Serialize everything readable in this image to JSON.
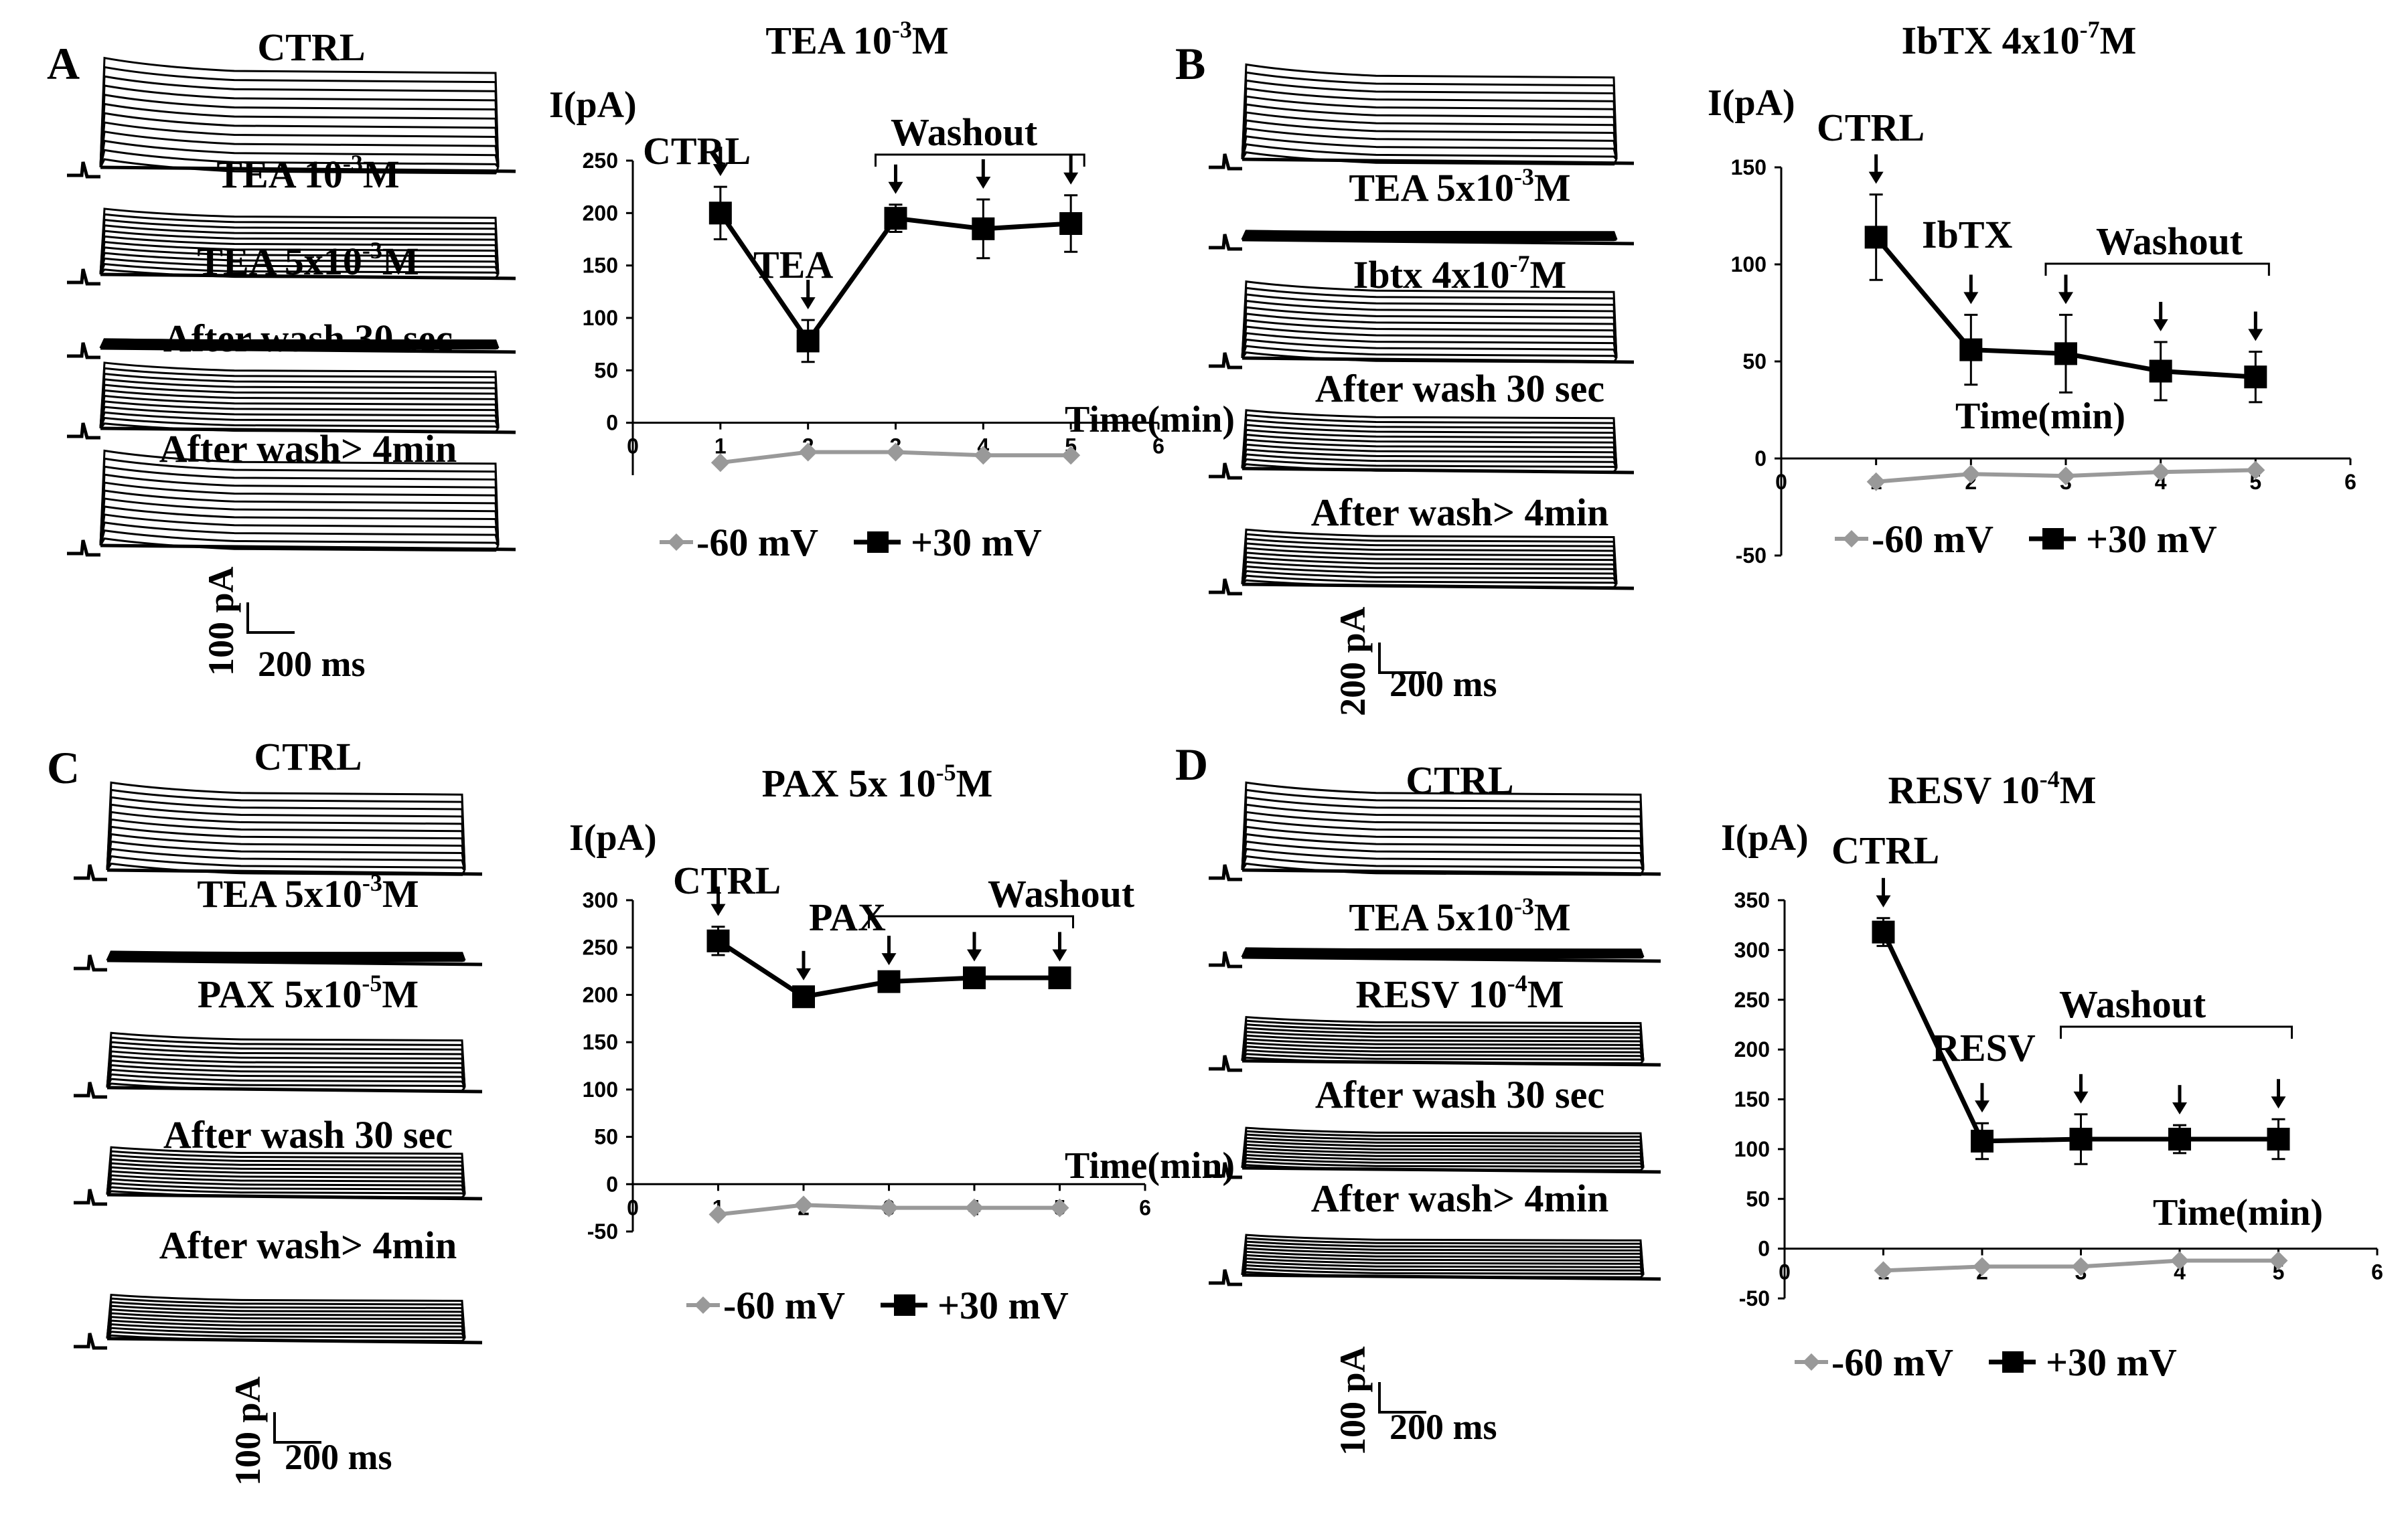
{
  "panels": [
    {
      "letter": "A",
      "trace_labels": [
        "CTRL",
        "TEA 10-3M",
        "TEA 5x10-3M",
        "After wash 30 sec",
        "After wash> 4min"
      ],
      "scale_y": "100 pA",
      "scale_x": "200 ms"
    },
    {
      "letter": "B",
      "trace_labels": [
        "TEA 5x10-3M",
        "Ibtx 4x10-7M",
        "After wash 30 sec",
        "After wash> 4min"
      ],
      "scale_y": "200 pA",
      "scale_x": "200 ms"
    },
    {
      "letter": "C",
      "trace_labels": [
        "CTRL",
        "TEA 5x10-3M",
        "PAX 5x10-5M",
        "After wash 30 sec",
        "After wash> 4min"
      ],
      "scale_y": "100 pA",
      "scale_x": "200 ms"
    },
    {
      "letter": "D",
      "trace_labels": [
        "CTRL",
        "TEA 5x10-3M",
        "RESV 10-4M",
        "After wash 30 sec",
        "After wash> 4min"
      ],
      "scale_y": "100 pA",
      "scale_x": "200 ms"
    }
  ],
  "colors": {
    "series_neg60": "#999999",
    "series_pos30": "#000000"
  },
  "chart_data": [
    {
      "type": "line",
      "panel": "A",
      "title": "TEA 10-3M",
      "ylabel": "I(pA)",
      "xlabel": "Time(min)",
      "ylim": [
        -50,
        250
      ],
      "yticks": [
        0,
        50,
        100,
        150,
        200,
        250
      ],
      "xlim": [
        0,
        6
      ],
      "xticks": [
        0,
        1,
        2,
        3,
        4,
        5,
        6
      ],
      "x": [
        1,
        2,
        3,
        4,
        5
      ],
      "series": [
        {
          "name": "-60 mV",
          "values": [
            -38,
            -28,
            -28,
            -31,
            -31
          ],
          "err": [
            0,
            0,
            0,
            0,
            0
          ]
        },
        {
          "name": "+30 mV",
          "values": [
            200,
            78,
            195,
            185,
            190
          ],
          "err": [
            25,
            20,
            13,
            28,
            27
          ]
        }
      ],
      "annotations": [
        "CTRL",
        "TEA",
        "Washout"
      ],
      "washout_from": 3,
      "washout_to": 5
    },
    {
      "type": "line",
      "panel": "B",
      "title": "IbTX 4x10-7M",
      "ylabel": "I(pA)",
      "xlabel": "Time(min)",
      "ylim": [
        -50,
        150
      ],
      "yticks": [
        -50,
        0,
        50,
        100,
        150
      ],
      "xlim": [
        0,
        6
      ],
      "xticks": [
        0,
        1,
        2,
        3,
        4,
        5,
        6
      ],
      "x": [
        1,
        2,
        3,
        4,
        5
      ],
      "series": [
        {
          "name": "-60 mV",
          "values": [
            -12,
            -8,
            -9,
            -7,
            -6
          ],
          "err": [
            0,
            0,
            0,
            0,
            0
          ]
        },
        {
          "name": "+30 mV",
          "values": [
            114,
            56,
            54,
            45,
            42
          ],
          "err": [
            22,
            18,
            20,
            15,
            13
          ]
        }
      ],
      "annotations": [
        "CTRL",
        "IbTX",
        "Washout"
      ],
      "washout_from": 3,
      "washout_to": 5
    },
    {
      "type": "line",
      "panel": "C",
      "title": "PAX 5x 10-5M",
      "ylabel": "I(pA)",
      "xlabel": "Time(min)",
      "ylim": [
        -50,
        300
      ],
      "yticks": [
        -50,
        0,
        50,
        100,
        150,
        200,
        250,
        300
      ],
      "xlim": [
        0,
        6
      ],
      "xticks": [
        0,
        1,
        2,
        3,
        4,
        5,
        6
      ],
      "x": [
        1,
        2,
        3,
        4,
        5
      ],
      "series": [
        {
          "name": "-60 mV",
          "values": [
            -32,
            -22,
            -25,
            -25,
            -25
          ],
          "err": [
            0,
            0,
            0,
            0,
            0
          ]
        },
        {
          "name": "+30 mV",
          "values": [
            257,
            198,
            214,
            218,
            218
          ],
          "err": [
            15,
            6,
            6,
            6,
            6
          ]
        }
      ],
      "annotations": [
        "CTRL",
        "PAX",
        "Washout"
      ],
      "washout_from": 3,
      "washout_to": 5
    },
    {
      "type": "line",
      "panel": "D",
      "title": "RESV 10-4M",
      "ylabel": "I(pA)",
      "xlabel": "Time(min)",
      "ylim": [
        -50,
        350
      ],
      "yticks": [
        -50,
        0,
        50,
        100,
        150,
        200,
        250,
        300,
        350
      ],
      "xlim": [
        0,
        6
      ],
      "xticks": [
        0,
        1,
        2,
        3,
        4,
        5,
        6
      ],
      "x": [
        1,
        2,
        3,
        4,
        5
      ],
      "series": [
        {
          "name": "-60 mV",
          "values": [
            -22,
            -18,
            -18,
            -12,
            -12
          ],
          "err": [
            0,
            0,
            0,
            0,
            0
          ]
        },
        {
          "name": "+30 mV",
          "values": [
            318,
            108,
            110,
            110,
            110
          ],
          "err": [
            14,
            18,
            25,
            14,
            20
          ]
        }
      ],
      "annotations": [
        "CTRL",
        "RESV",
        "Washout"
      ],
      "washout_from": 3,
      "washout_to": 5
    }
  ]
}
